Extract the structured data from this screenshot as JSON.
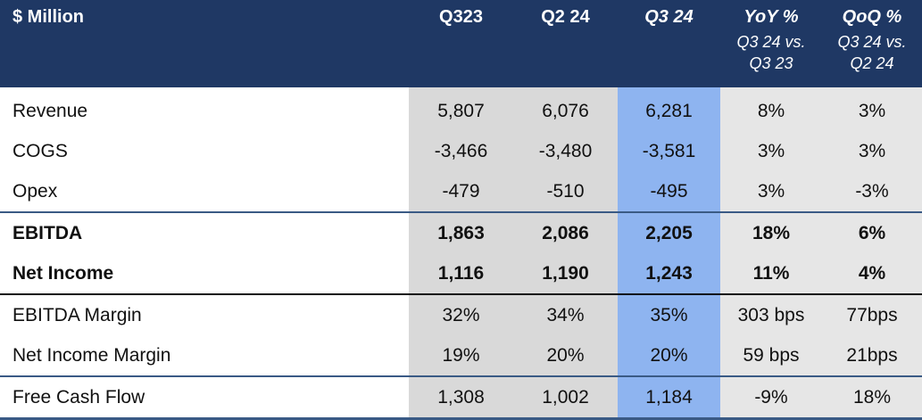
{
  "header": {
    "label": "$ Million",
    "columns": [
      {
        "label": "Q323",
        "sub1": "",
        "sub2": ""
      },
      {
        "label": "Q2 24",
        "sub1": "",
        "sub2": ""
      },
      {
        "label": "Q3 24",
        "sub1": "",
        "sub2": ""
      },
      {
        "label": "YoY %",
        "sub1": "Q3 24 vs.",
        "sub2": "Q3 23"
      },
      {
        "label": "QoQ %",
        "sub1": "Q3 24 vs.",
        "sub2": "Q2 24"
      }
    ]
  },
  "rows": [
    {
      "label": "Revenue",
      "values": [
        "5,807",
        "6,076",
        "6,281",
        "8%",
        "3%"
      ]
    },
    {
      "label": "COGS",
      "values": [
        "-3,466",
        "-3,480",
        "-3,581",
        "3%",
        "3%"
      ]
    },
    {
      "label": "Opex",
      "values": [
        "-479",
        "-510",
        "-495",
        "3%",
        "-3%"
      ]
    },
    {
      "label": "EBITDA",
      "values": [
        "1,863",
        "2,086",
        "2,205",
        "18%",
        "6%"
      ]
    },
    {
      "label": "Net Income",
      "values": [
        "1,116",
        "1,190",
        "1,243",
        "11%",
        "4%"
      ]
    },
    {
      "label": "EBITDA Margin",
      "values": [
        "32%",
        "34%",
        "35%",
        "303 bps",
        "77bps"
      ]
    },
    {
      "label": "Net Income Margin",
      "values": [
        "19%",
        "20%",
        "20%",
        "59 bps",
        "21bps"
      ]
    },
    {
      "label": "Free Cash Flow",
      "values": [
        "1,308",
        "1,002",
        "1,184",
        "-9%",
        "18%"
      ]
    }
  ],
  "colors": {
    "header_bg": "#1f3864",
    "highlight_column": "#8eb4f0",
    "shaded_column": "#d9d9d9",
    "percent_columns": "#e6e6e6"
  }
}
